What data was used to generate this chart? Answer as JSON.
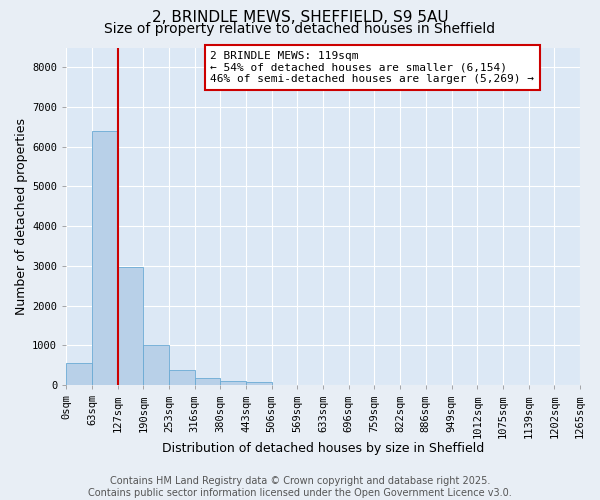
{
  "title": "2, BRINDLE MEWS, SHEFFIELD, S9 5AU",
  "subtitle": "Size of property relative to detached houses in Sheffield",
  "xlabel": "Distribution of detached houses by size in Sheffield",
  "ylabel": "Number of detached properties",
  "bar_color": "#b8d0e8",
  "bar_edge_color": "#6aaad4",
  "vline_color": "#cc0000",
  "vline_position": 2,
  "annotation_text": "2 BRINDLE MEWS: 119sqm\n← 54% of detached houses are smaller (6,154)\n46% of semi-detached houses are larger (5,269) →",
  "annotation_box_color": "#cc0000",
  "bin_labels": [
    "0sqm",
    "63sqm",
    "127sqm",
    "190sqm",
    "253sqm",
    "316sqm",
    "380sqm",
    "443sqm",
    "506sqm",
    "569sqm",
    "633sqm",
    "696sqm",
    "759sqm",
    "822sqm",
    "886sqm",
    "949sqm",
    "1012sqm",
    "1075sqm",
    "1139sqm",
    "1202sqm",
    "1265sqm"
  ],
  "bar_values": [
    560,
    6400,
    2980,
    1000,
    380,
    175,
    110,
    70,
    0,
    0,
    0,
    0,
    0,
    0,
    0,
    0,
    0,
    0,
    0,
    0
  ],
  "ylim": [
    0,
    8500
  ],
  "yticks": [
    0,
    1000,
    2000,
    3000,
    4000,
    5000,
    6000,
    7000,
    8000
  ],
  "footer_text": "Contains HM Land Registry data © Crown copyright and database right 2025.\nContains public sector information licensed under the Open Government Licence v3.0.",
  "bg_color": "#e8eef5",
  "plot_bg_color": "#dce8f5",
  "grid_color": "#ffffff",
  "title_fontsize": 11,
  "subtitle_fontsize": 10,
  "axis_label_fontsize": 9,
  "tick_fontsize": 7.5,
  "footer_fontsize": 7,
  "annotation_fontsize": 8
}
